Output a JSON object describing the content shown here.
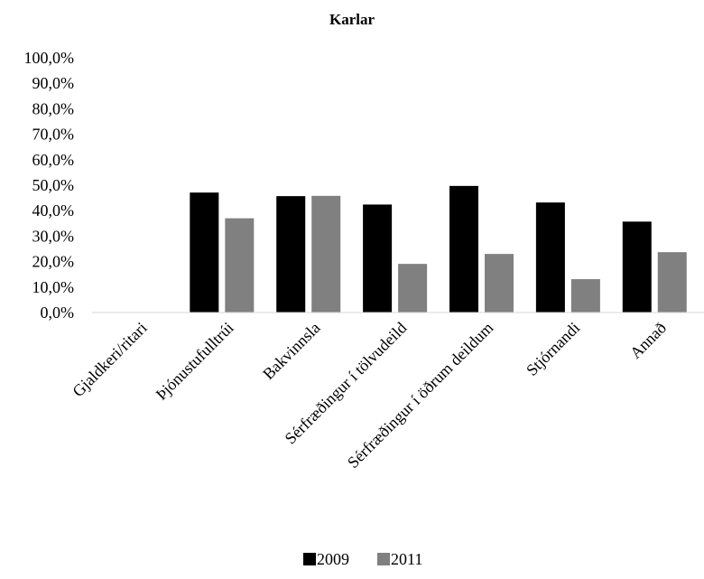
{
  "chart_data": {
    "type": "bar",
    "title": "Karlar",
    "xlabel": "",
    "ylabel": "",
    "categories": [
      "Gjaldkeri/ritari",
      "Þjónustufulltrúi",
      "Bakvinnsla",
      "Sérfræðingur í tölvudeild",
      "Sérfræðingur í öðrum deildum",
      "Stjórnandi",
      "Annað"
    ],
    "series": [
      {
        "name": "2009",
        "color": "#000000",
        "values": [
          0,
          47.1,
          45.7,
          42.4,
          49.7,
          43.2,
          35.7
        ]
      },
      {
        "name": "2011",
        "color": "#808080",
        "values": [
          0,
          37.0,
          45.8,
          19.1,
          23.0,
          13.1,
          23.7
        ]
      }
    ],
    "ylim": [
      0,
      100
    ],
    "yticks": [
      "0,0%",
      "10,0%",
      "20,0%",
      "30,0%",
      "40,0%",
      "50,0%",
      "60,0%",
      "70,0%",
      "80,0%",
      "90,0%",
      "100,0%"
    ],
    "grid": false,
    "legend_position": "bottom"
  }
}
